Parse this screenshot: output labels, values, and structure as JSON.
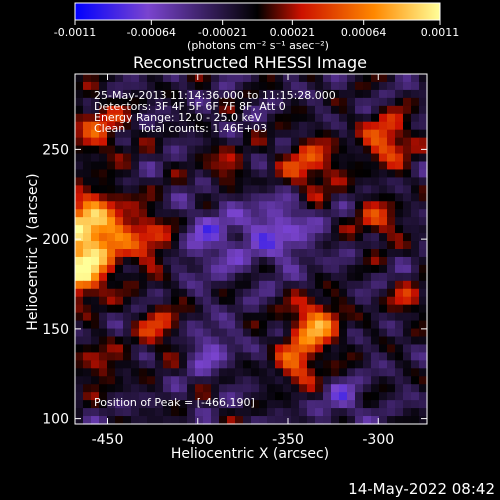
{
  "chart_data": {
    "type": "heatmap",
    "title": "Reconstructed RHESSI Image",
    "xlabel": "Heliocentric X (arcsec)",
    "ylabel": "Heliocentric Y (arcsec)",
    "xlim": [
      -468,
      -273
    ],
    "ylim": [
      97,
      292
    ],
    "xticks": [
      -450,
      -400,
      -350,
      -300
    ],
    "xtick_labels": [
      "-450",
      "-400",
      "-350",
      "-300"
    ],
    "yticks": [
      100,
      150,
      200,
      250
    ],
    "ytick_labels": [
      "100",
      "150",
      "200",
      "250"
    ],
    "colorbar": {
      "min": -0.0011,
      "max": 0.0011,
      "ticks": [
        -0.0011,
        -0.00064,
        -0.00021,
        0.00021,
        0.00064,
        0.0011
      ],
      "tick_labels": [
        "-0.0011",
        "-0.00064",
        "-0.00021",
        "0.00021",
        "0.00064",
        "0.0011"
      ],
      "units": "(photons cm⁻² s⁻¹ asec⁻²)",
      "colors": [
        "#0000ff",
        "#7a44cf",
        "#000000",
        "#cc1100",
        "#ff8800",
        "#ffff99"
      ]
    },
    "info_lines": [
      "25-May-2013 11:14:36.000 to 11:15:28.000",
      "Detectors: 3F 4F 5F 6F 7F 8F, Att 0",
      "Energy Range: 12.0 - 25.0 keV",
      "Clean    Total counts: 1.46E+03"
    ],
    "peak_label": "Position of Peak = [-466,190]",
    "peak": {
      "x": -466,
      "y": 190
    },
    "footer": "14-May-2022 08:42",
    "hotspots": [
      {
        "x": -460,
        "y": 205,
        "amp": 1.25,
        "r": 20
      },
      {
        "x": -465,
        "y": 180,
        "amp": 1.0,
        "r": 14
      },
      {
        "x": -455,
        "y": 262,
        "amp": 0.55,
        "r": 16
      },
      {
        "x": -425,
        "y": 200,
        "amp": 0.55,
        "r": 16
      },
      {
        "x": -420,
        "y": 150,
        "amp": 0.5,
        "r": 14
      },
      {
        "x": -455,
        "y": 130,
        "amp": 0.45,
        "r": 12
      },
      {
        "x": -335,
        "y": 152,
        "amp": 0.95,
        "r": 14
      },
      {
        "x": -345,
        "y": 130,
        "amp": 0.7,
        "r": 12
      },
      {
        "x": -338,
        "y": 240,
        "amp": 0.65,
        "r": 16
      },
      {
        "x": -295,
        "y": 255,
        "amp": 0.75,
        "r": 14
      },
      {
        "x": -300,
        "y": 210,
        "amp": 0.55,
        "r": 12
      },
      {
        "x": -283,
        "y": 165,
        "amp": 0.45,
        "r": 10
      },
      {
        "x": -385,
        "y": 240,
        "amp": 0.4,
        "r": 12
      },
      {
        "x": -395,
        "y": 200,
        "amp": -0.45,
        "r": 20
      },
      {
        "x": -355,
        "y": 205,
        "amp": -0.55,
        "r": 20
      },
      {
        "x": -395,
        "y": 140,
        "amp": -0.45,
        "r": 14
      },
      {
        "x": -320,
        "y": 110,
        "amp": -0.4,
        "r": 12
      }
    ]
  }
}
